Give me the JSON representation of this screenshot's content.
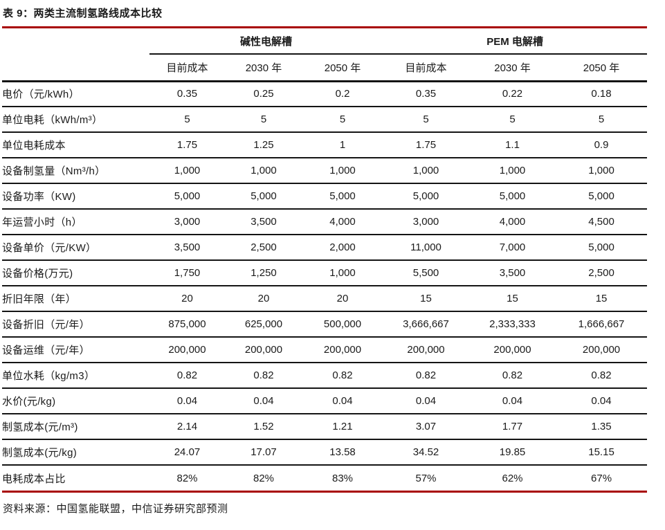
{
  "title": "表 9：两类主流制氢路线成本比较",
  "source_note": "资料来源：中国氢能联盟，中信证券研究部预测",
  "colors": {
    "accent_red": "#A80000",
    "line_black": "#141414",
    "text": "#1a1a1a"
  },
  "table": {
    "groups": [
      {
        "label": "碱性电解槽"
      },
      {
        "label": "PEM 电解槽"
      }
    ],
    "subheaders": [
      "目前成本",
      "2030 年",
      "2050 年",
      "目前成本",
      "2030 年",
      "2050 年"
    ],
    "rows": [
      {
        "label": "电价（元/kWh）",
        "values": [
          "0.35",
          "0.25",
          "0.2",
          "0.35",
          "0.22",
          "0.18"
        ]
      },
      {
        "label": "单位电耗（kWh/m³）",
        "values": [
          "5",
          "5",
          "5",
          "5",
          "5",
          "5"
        ]
      },
      {
        "label": "单位电耗成本",
        "values": [
          "1.75",
          "1.25",
          "1",
          "1.75",
          "1.1",
          "0.9"
        ]
      },
      {
        "label": "设备制氢量（Nm³/h）",
        "values": [
          "1,000",
          "1,000",
          "1,000",
          "1,000",
          "1,000",
          "1,000"
        ]
      },
      {
        "label": "设备功率（KW)",
        "values": [
          "5,000",
          "5,000",
          "5,000",
          "5,000",
          "5,000",
          "5,000"
        ]
      },
      {
        "label": "年运营小时（h）",
        "values": [
          "3,000",
          "3,500",
          "4,000",
          "3,000",
          "4,000",
          "4,500"
        ]
      },
      {
        "label": "设备单价（元/KW）",
        "values": [
          "3,500",
          "2,500",
          "2,000",
          "11,000",
          "7,000",
          "5,000"
        ]
      },
      {
        "label": "设备价格(万元)",
        "values": [
          "1,750",
          "1,250",
          "1,000",
          "5,500",
          "3,500",
          "2,500"
        ]
      },
      {
        "label": "折旧年限（年）",
        "values": [
          "20",
          "20",
          "20",
          "15",
          "15",
          "15"
        ]
      },
      {
        "label": "设备折旧（元/年）",
        "values": [
          "875,000",
          "625,000",
          "500,000",
          "3,666,667",
          "2,333,333",
          "1,666,667"
        ]
      },
      {
        "label": "设备运维（元/年）",
        "values": [
          "200,000",
          "200,000",
          "200,000",
          "200,000",
          "200,000",
          "200,000"
        ]
      },
      {
        "label": "单位水耗（kg/m3）",
        "values": [
          "0.82",
          "0.82",
          "0.82",
          "0.82",
          "0.82",
          "0.82"
        ]
      },
      {
        "label": "水价(元/kg)",
        "values": [
          "0.04",
          "0.04",
          "0.04",
          "0.04",
          "0.04",
          "0.04"
        ]
      },
      {
        "label": "制氢成本(元/m³)",
        "values": [
          "2.14",
          "1.52",
          "1.21",
          "3.07",
          "1.77",
          "1.35"
        ]
      },
      {
        "label": "制氢成本(元/kg)",
        "values": [
          "24.07",
          "17.07",
          "13.58",
          "34.52",
          "19.85",
          "15.15"
        ]
      },
      {
        "label": "电耗成本占比",
        "values": [
          "82%",
          "82%",
          "83%",
          "57%",
          "62%",
          "67%"
        ]
      }
    ]
  }
}
